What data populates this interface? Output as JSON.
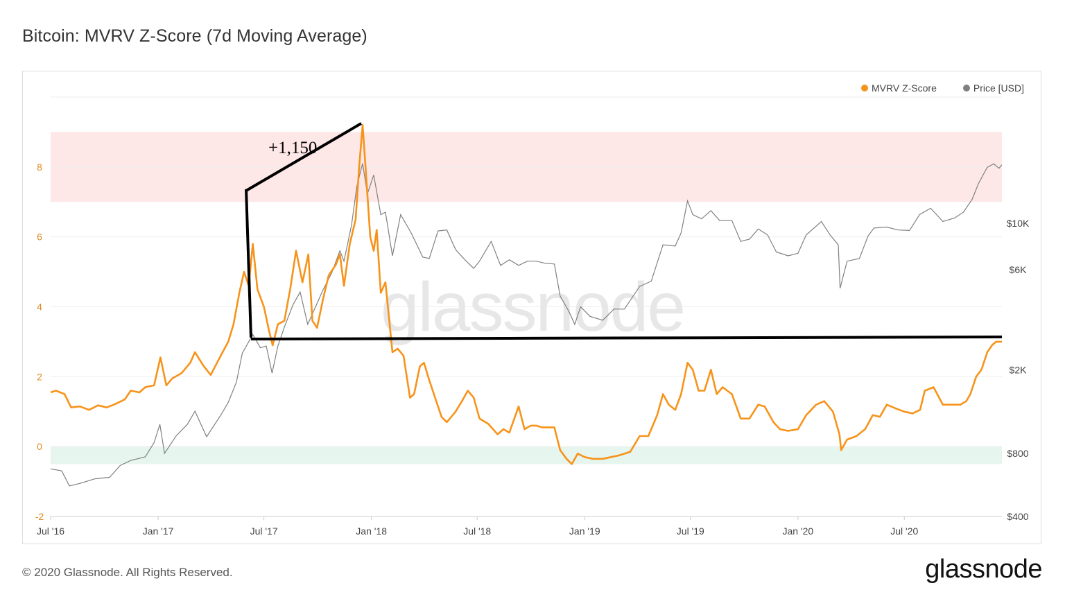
{
  "title": "Bitcoin: MVRV Z-Score (7d Moving Average)",
  "legend": {
    "mvrv_label": "MVRV Z-Score",
    "price_label": "Price [USD]"
  },
  "watermark": "glassnode",
  "annotation": "+1,150",
  "footer": "© 2020 Glassnode. All Rights Reserved.",
  "brand": "glassnode",
  "colors": {
    "mvrv": "#f7931a",
    "price": "#808080",
    "red_band": "#fde7e7",
    "green_band": "#e6f6ee",
    "left_axis": "#e08a1e",
    "grid": "#eeeeee"
  },
  "chart_data": {
    "type": "line",
    "title": "Bitcoin: MVRV Z-Score (7d Moving Average)",
    "x_range": [
      "2016-07-01",
      "2020-12-15"
    ],
    "x_ticks": [
      {
        "date": "2016-07-01",
        "label": "Jul '16"
      },
      {
        "date": "2017-01-01",
        "label": "Jan '17"
      },
      {
        "date": "2017-07-01",
        "label": "Jul '17"
      },
      {
        "date": "2018-01-01",
        "label": "Jan '18"
      },
      {
        "date": "2018-07-01",
        "label": "Jul '18"
      },
      {
        "date": "2019-01-01",
        "label": "Jan '19"
      },
      {
        "date": "2019-07-01",
        "label": "Jul '19"
      },
      {
        "date": "2020-01-01",
        "label": "Jan '20"
      },
      {
        "date": "2020-07-01",
        "label": "Jul '20"
      }
    ],
    "y_left": {
      "min": -2,
      "max": 10,
      "ticks": [
        {
          "value": -2,
          "label": "-2"
        },
        {
          "value": 0,
          "label": "0"
        },
        {
          "value": 2,
          "label": "2"
        },
        {
          "value": 4,
          "label": "4"
        },
        {
          "value": 6,
          "label": "6"
        },
        {
          "value": 8,
          "label": "8"
        }
      ]
    },
    "y_right": {
      "scale": "log",
      "min": 400,
      "max": 40000,
      "ticks": [
        {
          "value": 400,
          "label": "$400"
        },
        {
          "value": 800,
          "label": "$800"
        },
        {
          "value": 2000,
          "label": "$2K"
        },
        {
          "value": 6000,
          "label": "$6K"
        },
        {
          "value": 10000,
          "label": "$10K"
        }
      ]
    },
    "bands": [
      {
        "name": "overvalued",
        "from": 7,
        "to": 9
      },
      {
        "name": "undervalued",
        "from": -0.5,
        "to": 0
      }
    ],
    "series": [
      {
        "name": "MVRV Z-Score",
        "axis": "left",
        "points": [
          [
            "2016-07-01",
            1.55
          ],
          [
            "2016-07-10",
            1.6
          ],
          [
            "2016-07-25",
            1.5
          ],
          [
            "2016-08-05",
            1.12
          ],
          [
            "2016-08-20",
            1.15
          ],
          [
            "2016-09-05",
            1.05
          ],
          [
            "2016-09-20",
            1.18
          ],
          [
            "2016-10-05",
            1.12
          ],
          [
            "2016-10-20",
            1.22
          ],
          [
            "2016-11-05",
            1.35
          ],
          [
            "2016-11-15",
            1.6
          ],
          [
            "2016-11-30",
            1.55
          ],
          [
            "2016-12-10",
            1.7
          ],
          [
            "2016-12-25",
            1.75
          ],
          [
            "2017-01-05",
            2.55
          ],
          [
            "2017-01-15",
            1.75
          ],
          [
            "2017-01-25",
            1.95
          ],
          [
            "2017-02-10",
            2.1
          ],
          [
            "2017-02-25",
            2.4
          ],
          [
            "2017-03-05",
            2.7
          ],
          [
            "2017-03-20",
            2.3
          ],
          [
            "2017-04-01",
            2.05
          ],
          [
            "2017-04-15",
            2.5
          ],
          [
            "2017-05-01",
            3.0
          ],
          [
            "2017-05-10",
            3.5
          ],
          [
            "2017-05-20",
            4.4
          ],
          [
            "2017-05-28",
            5.0
          ],
          [
            "2017-06-05",
            4.6
          ],
          [
            "2017-06-12",
            5.8
          ],
          [
            "2017-06-20",
            4.5
          ],
          [
            "2017-07-01",
            4.0
          ],
          [
            "2017-07-10",
            3.3
          ],
          [
            "2017-07-16",
            2.9
          ],
          [
            "2017-07-25",
            3.5
          ],
          [
            "2017-08-05",
            3.6
          ],
          [
            "2017-08-15",
            4.5
          ],
          [
            "2017-08-25",
            5.6
          ],
          [
            "2017-09-05",
            4.7
          ],
          [
            "2017-09-15",
            5.5
          ],
          [
            "2017-09-22",
            3.6
          ],
          [
            "2017-09-30",
            3.4
          ],
          [
            "2017-10-10",
            4.2
          ],
          [
            "2017-10-20",
            4.9
          ],
          [
            "2017-11-01",
            5.2
          ],
          [
            "2017-11-08",
            5.5
          ],
          [
            "2017-11-15",
            4.6
          ],
          [
            "2017-11-25",
            5.8
          ],
          [
            "2017-12-05",
            6.5
          ],
          [
            "2017-12-11",
            8.0
          ],
          [
            "2017-12-17",
            9.2
          ],
          [
            "2017-12-22",
            8.0
          ],
          [
            "2017-12-30",
            6.0
          ],
          [
            "2018-01-05",
            5.6
          ],
          [
            "2018-01-10",
            6.2
          ],
          [
            "2018-01-17",
            4.4
          ],
          [
            "2018-01-25",
            4.7
          ],
          [
            "2018-02-06",
            2.7
          ],
          [
            "2018-02-15",
            2.8
          ],
          [
            "2018-02-25",
            2.6
          ],
          [
            "2018-03-08",
            1.4
          ],
          [
            "2018-03-15",
            1.5
          ],
          [
            "2018-03-25",
            2.3
          ],
          [
            "2018-04-01",
            2.4
          ],
          [
            "2018-04-10",
            1.9
          ],
          [
            "2018-04-20",
            1.4
          ],
          [
            "2018-05-01",
            0.85
          ],
          [
            "2018-05-10",
            0.7
          ],
          [
            "2018-05-25",
            1.0
          ],
          [
            "2018-06-05",
            1.3
          ],
          [
            "2018-06-15",
            1.6
          ],
          [
            "2018-06-25",
            1.4
          ],
          [
            "2018-07-05",
            0.8
          ],
          [
            "2018-07-20",
            0.65
          ],
          [
            "2018-08-05",
            0.35
          ],
          [
            "2018-08-15",
            0.5
          ],
          [
            "2018-08-25",
            0.4
          ],
          [
            "2018-09-10",
            1.15
          ],
          [
            "2018-09-20",
            0.5
          ],
          [
            "2018-10-01",
            0.6
          ],
          [
            "2018-10-10",
            0.6
          ],
          [
            "2018-10-20",
            0.55
          ],
          [
            "2018-11-01",
            0.55
          ],
          [
            "2018-11-10",
            0.55
          ],
          [
            "2018-11-20",
            -0.1
          ],
          [
            "2018-12-01",
            -0.35
          ],
          [
            "2018-12-10",
            -0.5
          ],
          [
            "2018-12-20",
            -0.2
          ],
          [
            "2019-01-01",
            -0.3
          ],
          [
            "2019-01-15",
            -0.35
          ],
          [
            "2019-02-01",
            -0.35
          ],
          [
            "2019-02-15",
            -0.3
          ],
          [
            "2019-03-01",
            -0.25
          ],
          [
            "2019-03-20",
            -0.15
          ],
          [
            "2019-04-05",
            0.3
          ],
          [
            "2019-04-20",
            0.3
          ],
          [
            "2019-05-05",
            0.9
          ],
          [
            "2019-05-15",
            1.5
          ],
          [
            "2019-05-25",
            1.2
          ],
          [
            "2019-06-05",
            1.05
          ],
          [
            "2019-06-15",
            1.5
          ],
          [
            "2019-06-26",
            2.4
          ],
          [
            "2019-07-05",
            2.2
          ],
          [
            "2019-07-15",
            1.6
          ],
          [
            "2019-07-25",
            1.6
          ],
          [
            "2019-08-05",
            2.2
          ],
          [
            "2019-08-15",
            1.5
          ],
          [
            "2019-08-25",
            1.7
          ],
          [
            "2019-09-10",
            1.5
          ],
          [
            "2019-09-25",
            0.8
          ],
          [
            "2019-10-10",
            0.8
          ],
          [
            "2019-10-25",
            1.2
          ],
          [
            "2019-11-05",
            1.15
          ],
          [
            "2019-11-20",
            0.7
          ],
          [
            "2019-12-01",
            0.5
          ],
          [
            "2019-12-15",
            0.45
          ],
          [
            "2020-01-01",
            0.5
          ],
          [
            "2020-01-15",
            0.9
          ],
          [
            "2020-02-01",
            1.2
          ],
          [
            "2020-02-15",
            1.3
          ],
          [
            "2020-03-01",
            1.0
          ],
          [
            "2020-03-12",
            0.35
          ],
          [
            "2020-03-15",
            -0.1
          ],
          [
            "2020-03-25",
            0.2
          ],
          [
            "2020-04-10",
            0.3
          ],
          [
            "2020-04-25",
            0.5
          ],
          [
            "2020-05-08",
            0.9
          ],
          [
            "2020-05-20",
            0.85
          ],
          [
            "2020-06-01",
            1.2
          ],
          [
            "2020-06-15",
            1.1
          ],
          [
            "2020-07-01",
            1.0
          ],
          [
            "2020-07-15",
            0.95
          ],
          [
            "2020-07-28",
            1.05
          ],
          [
            "2020-08-05",
            1.6
          ],
          [
            "2020-08-20",
            1.7
          ],
          [
            "2020-09-05",
            1.2
          ],
          [
            "2020-09-20",
            1.2
          ],
          [
            "2020-10-05",
            1.2
          ],
          [
            "2020-10-15",
            1.3
          ],
          [
            "2020-10-22",
            1.5
          ],
          [
            "2020-11-01",
            2.0
          ],
          [
            "2020-11-10",
            2.2
          ],
          [
            "2020-11-20",
            2.7
          ],
          [
            "2020-11-28",
            2.9
          ],
          [
            "2020-12-05",
            3.0
          ],
          [
            "2020-12-15",
            3.0
          ]
        ]
      },
      {
        "name": "Price [USD]",
        "axis": "right",
        "points": [
          [
            "2016-07-01",
            675
          ],
          [
            "2016-07-20",
            660
          ],
          [
            "2016-08-02",
            560
          ],
          [
            "2016-08-20",
            575
          ],
          [
            "2016-09-15",
            605
          ],
          [
            "2016-10-10",
            615
          ],
          [
            "2016-10-28",
            700
          ],
          [
            "2016-11-15",
            740
          ],
          [
            "2016-12-10",
            770
          ],
          [
            "2016-12-25",
            900
          ],
          [
            "2017-01-04",
            1100
          ],
          [
            "2017-01-12",
            800
          ],
          [
            "2017-02-01",
            970
          ],
          [
            "2017-02-20",
            1100
          ],
          [
            "2017-03-05",
            1270
          ],
          [
            "2017-03-25",
            960
          ],
          [
            "2017-04-20",
            1240
          ],
          [
            "2017-05-01",
            1400
          ],
          [
            "2017-05-15",
            1750
          ],
          [
            "2017-05-25",
            2400
          ],
          [
            "2017-06-12",
            2950
          ],
          [
            "2017-06-25",
            2550
          ],
          [
            "2017-07-05",
            2600
          ],
          [
            "2017-07-15",
            1930
          ],
          [
            "2017-07-25",
            2600
          ],
          [
            "2017-08-05",
            3200
          ],
          [
            "2017-08-20",
            4100
          ],
          [
            "2017-09-01",
            4700
          ],
          [
            "2017-09-14",
            3300
          ],
          [
            "2017-09-22",
            3700
          ],
          [
            "2017-10-10",
            4800
          ],
          [
            "2017-10-25",
            5800
          ],
          [
            "2017-11-08",
            7400
          ],
          [
            "2017-11-15",
            6600
          ],
          [
            "2017-11-28",
            9800
          ],
          [
            "2017-12-07",
            15000
          ],
          [
            "2017-12-17",
            19300
          ],
          [
            "2017-12-25",
            13800
          ],
          [
            "2018-01-05",
            17000
          ],
          [
            "2018-01-17",
            11000
          ],
          [
            "2018-01-25",
            11300
          ],
          [
            "2018-02-06",
            7000
          ],
          [
            "2018-02-20",
            11000
          ],
          [
            "2018-03-10",
            9000
          ],
          [
            "2018-03-30",
            6900
          ],
          [
            "2018-04-10",
            6800
          ],
          [
            "2018-04-25",
            9200
          ],
          [
            "2018-05-10",
            9300
          ],
          [
            "2018-05-25",
            7500
          ],
          [
            "2018-06-10",
            6700
          ],
          [
            "2018-06-25",
            6100
          ],
          [
            "2018-07-05",
            6600
          ],
          [
            "2018-07-25",
            8200
          ],
          [
            "2018-08-10",
            6300
          ],
          [
            "2018-08-25",
            6700
          ],
          [
            "2018-09-10",
            6300
          ],
          [
            "2018-09-25",
            6600
          ],
          [
            "2018-10-10",
            6600
          ],
          [
            "2018-10-25",
            6450
          ],
          [
            "2018-11-10",
            6400
          ],
          [
            "2018-11-20",
            4500
          ],
          [
            "2018-12-05",
            3800
          ],
          [
            "2018-12-15",
            3300
          ],
          [
            "2018-12-25",
            4000
          ],
          [
            "2019-01-10",
            3600
          ],
          [
            "2019-02-01",
            3450
          ],
          [
            "2019-02-20",
            3900
          ],
          [
            "2019-03-10",
            3900
          ],
          [
            "2019-04-05",
            5000
          ],
          [
            "2019-04-25",
            5300
          ],
          [
            "2019-05-15",
            7900
          ],
          [
            "2019-06-05",
            7800
          ],
          [
            "2019-06-15",
            9000
          ],
          [
            "2019-06-26",
            12800
          ],
          [
            "2019-07-05",
            11000
          ],
          [
            "2019-07-20",
            10500
          ],
          [
            "2019-08-05",
            11500
          ],
          [
            "2019-08-20",
            10300
          ],
          [
            "2019-09-10",
            10300
          ],
          [
            "2019-09-25",
            8200
          ],
          [
            "2019-10-10",
            8400
          ],
          [
            "2019-10-25",
            9400
          ],
          [
            "2019-11-10",
            8800
          ],
          [
            "2019-11-25",
            7300
          ],
          [
            "2019-12-15",
            7000
          ],
          [
            "2020-01-01",
            7200
          ],
          [
            "2020-01-15",
            8800
          ],
          [
            "2020-02-10",
            10200
          ],
          [
            "2020-02-25",
            8800
          ],
          [
            "2020-03-10",
            7900
          ],
          [
            "2020-03-13",
            4900
          ],
          [
            "2020-03-25",
            6600
          ],
          [
            "2020-04-15",
            6800
          ],
          [
            "2020-04-30",
            8700
          ],
          [
            "2020-05-10",
            9500
          ],
          [
            "2020-06-01",
            9600
          ],
          [
            "2020-06-20",
            9300
          ],
          [
            "2020-07-10",
            9250
          ],
          [
            "2020-07-27",
            11000
          ],
          [
            "2020-08-15",
            11800
          ],
          [
            "2020-09-05",
            10200
          ],
          [
            "2020-09-25",
            10600
          ],
          [
            "2020-10-10",
            11300
          ],
          [
            "2020-10-25",
            13000
          ],
          [
            "2020-11-05",
            15500
          ],
          [
            "2020-11-20",
            18500
          ],
          [
            "2020-12-01",
            19200
          ],
          [
            "2020-12-10",
            18300
          ],
          [
            "2020-12-15",
            19000
          ]
        ]
      }
    ]
  }
}
